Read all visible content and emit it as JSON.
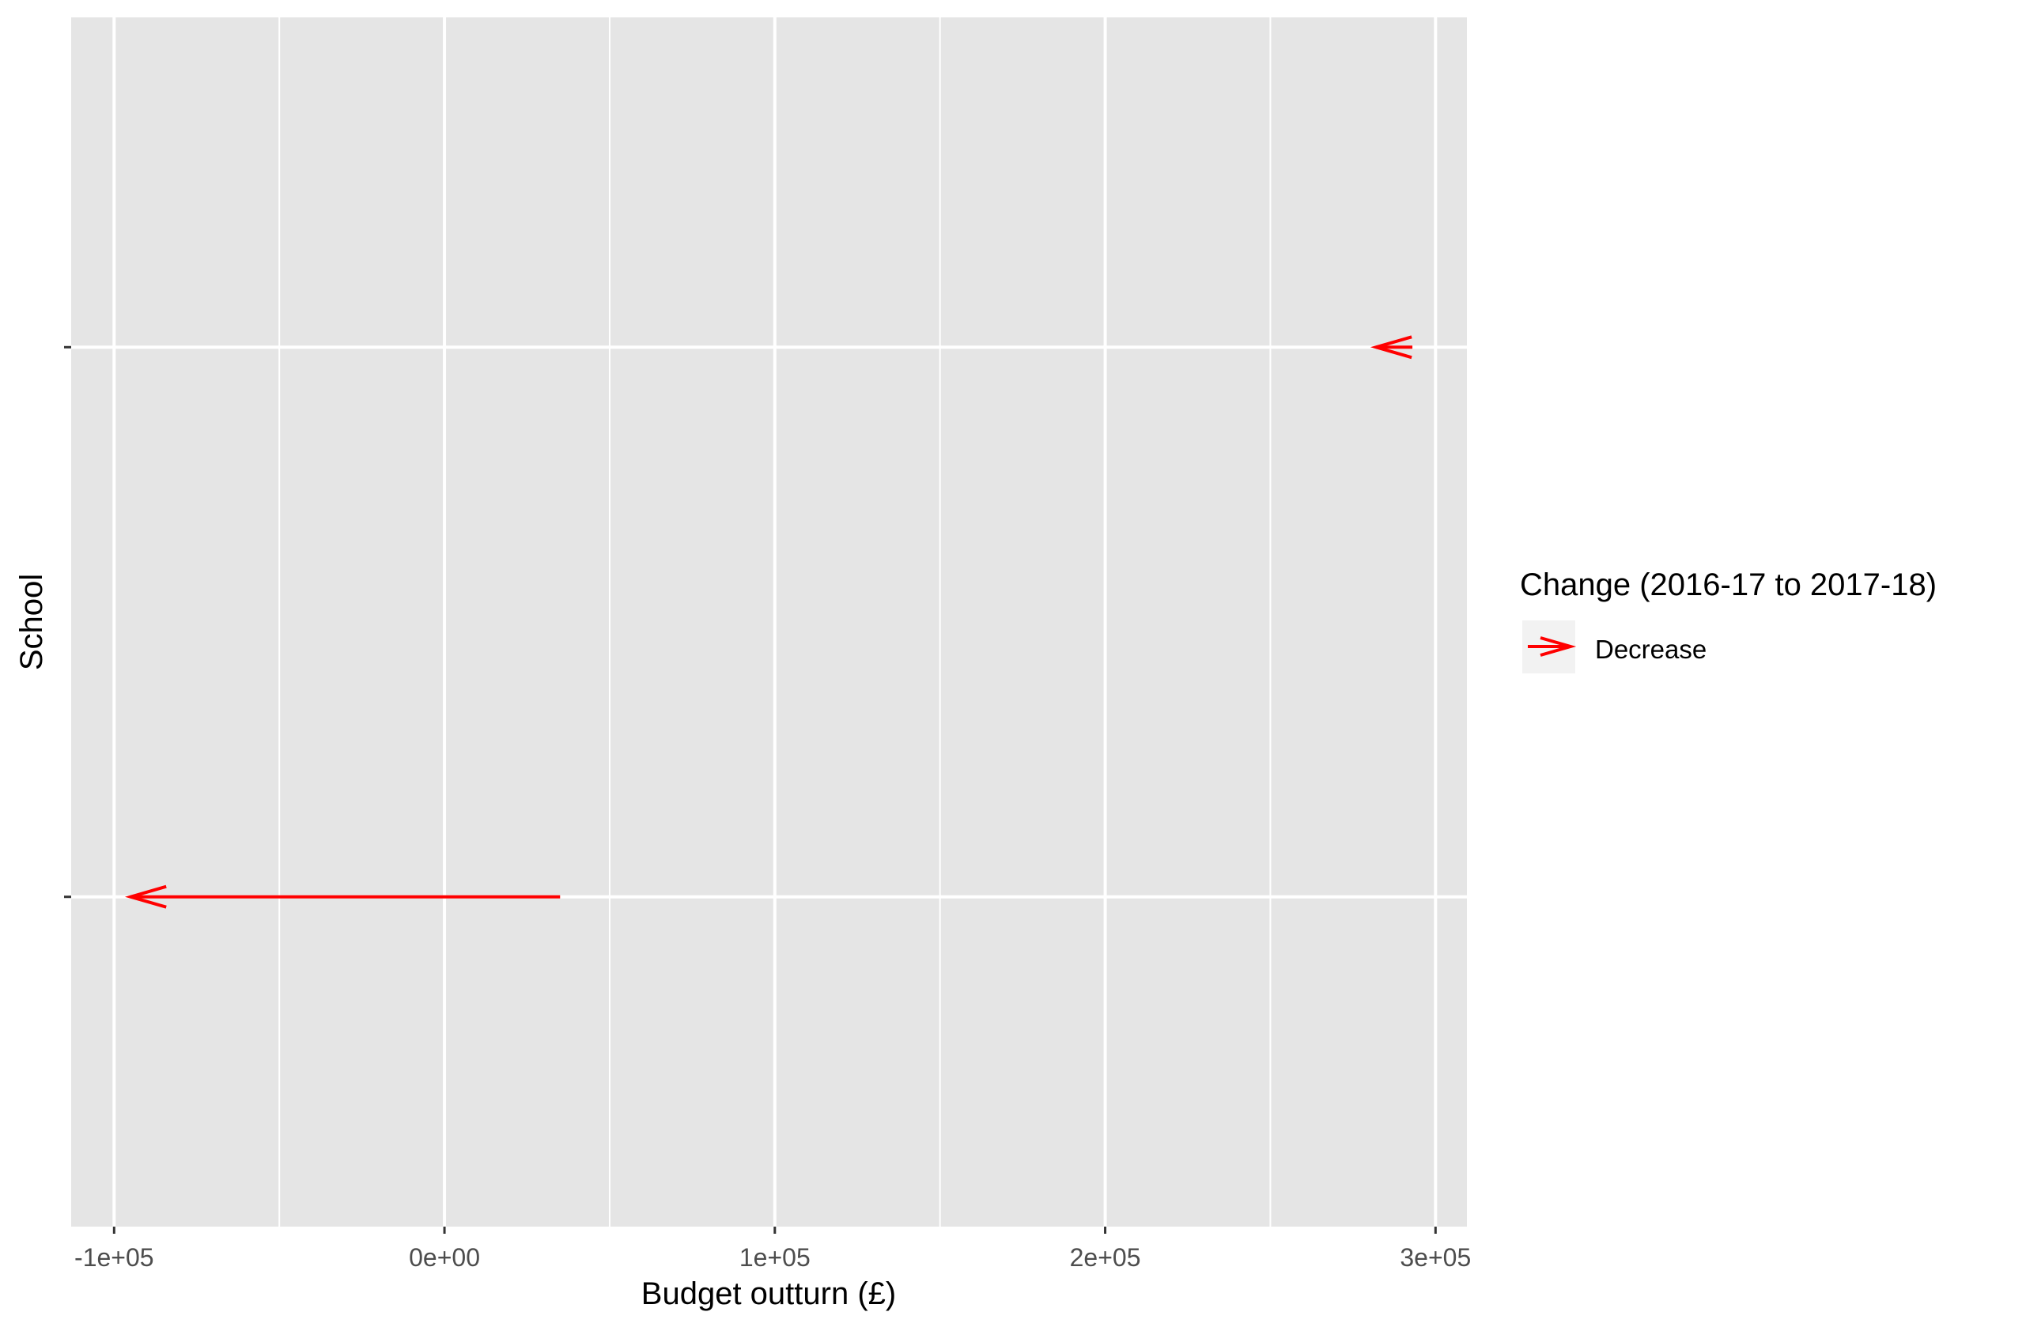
{
  "chart_data": {
    "type": "arrow",
    "title": "",
    "xlabel": "Budget outturn (£)",
    "ylabel": "School",
    "xlim": [
      -113000,
      309500
    ],
    "x_ticks": [
      {
        "value": -100000,
        "label": "-1e+05"
      },
      {
        "value": 0,
        "label": "0e+00"
      },
      {
        "value": 100000,
        "label": "1e+05"
      },
      {
        "value": 200000,
        "label": "2e+05"
      },
      {
        "value": 300000,
        "label": "3e+05"
      }
    ],
    "x_minor_ticks": [
      -50000,
      50000,
      150000,
      250000
    ],
    "y_categories_count": 2,
    "ylim": [
      0.4,
      2.6
    ],
    "series": [
      {
        "name": "Decrease",
        "color": "#ff0000",
        "from": 35000,
        "to": -95000,
        "y": 1
      },
      {
        "name": "Decrease",
        "color": "#ff0000",
        "from": 293000,
        "to": 282000,
        "y": 2
      }
    ],
    "legend": {
      "title": "Change (2016-17 to 2017-18)",
      "position": "right",
      "items": [
        {
          "label": "Decrease",
          "color": "#ff0000"
        }
      ]
    },
    "panel_background": "#e5e5e5",
    "grid_color": "#ffffff"
  }
}
